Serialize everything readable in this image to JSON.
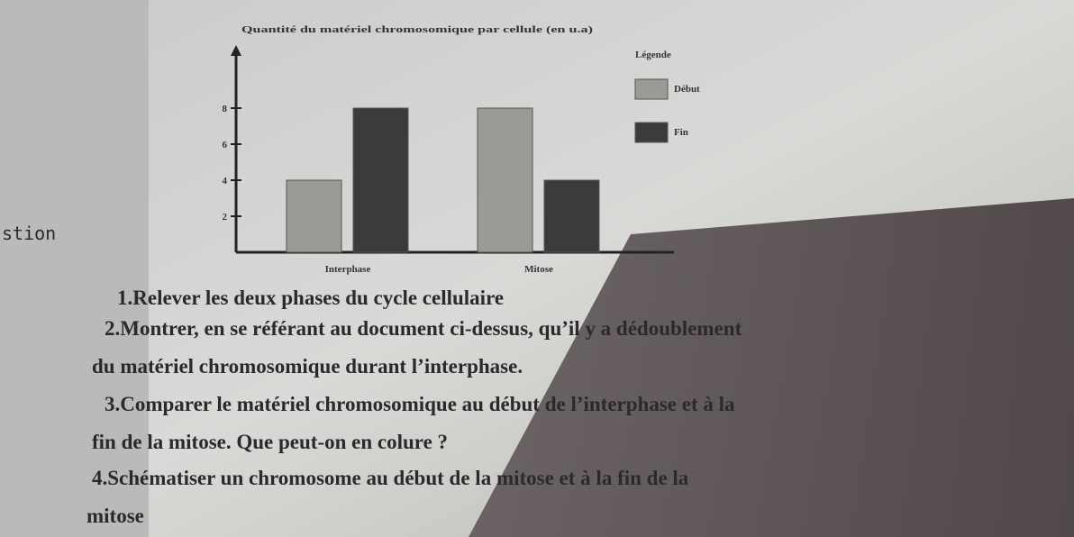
{
  "margin_text": "stion",
  "chart_data": {
    "type": "bar",
    "title": "Quantité du matériel chromosomique par cellule (en u.a)",
    "categories": [
      "Interphase",
      "Mitose"
    ],
    "series": [
      {
        "name": "Début",
        "color": "#9a9a96",
        "values": [
          4,
          8
        ]
      },
      {
        "name": "Fin",
        "color": "#3a3b3a",
        "values": [
          8,
          4
        ]
      }
    ],
    "legend_title": "Légende",
    "legend": "top-right",
    "ylim": [
      0,
      11.5
    ],
    "yticks": [
      2,
      4,
      6,
      8
    ],
    "grid": false
  },
  "questions": [
    "1.Relever les deux phases du cycle cellulaire",
    "2.Montrer, en se référant au document ci-dessus, qu’il y a dédoublement",
    "du matériel chromosomique durant l’interphase.",
    "3.Comparer le matériel chromosomique au début de l’interphase et à la",
    "fin de la mitose. Que peut-on en colure ?",
    "4.Schématiser un chromosome au début de la mitose et à la fin de la",
    "mitose"
  ]
}
